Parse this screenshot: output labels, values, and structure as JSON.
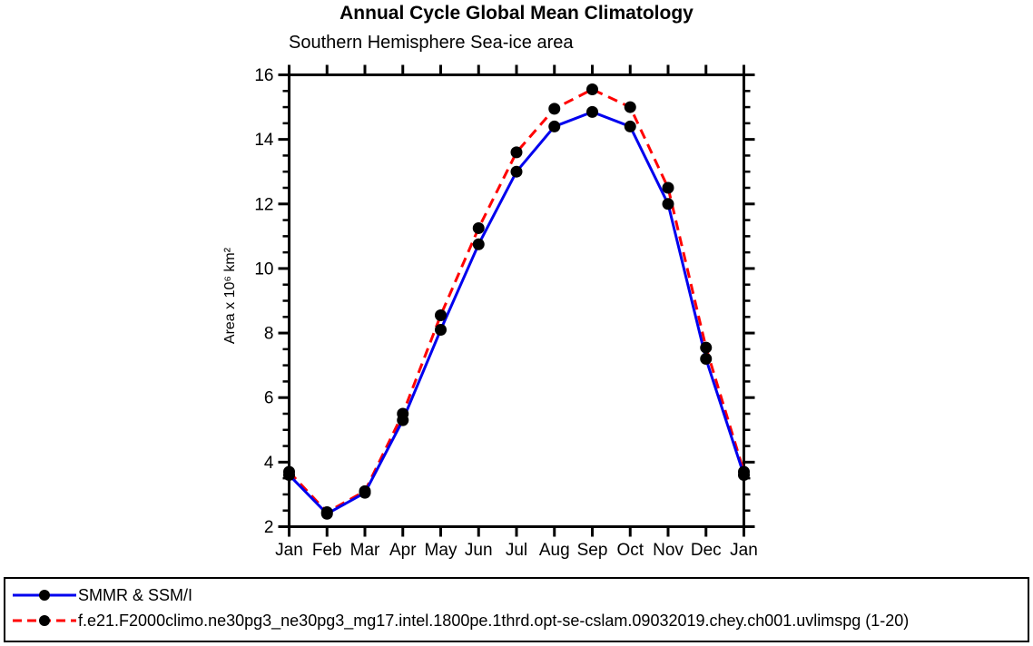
{
  "page": {
    "background": "#ffffff"
  },
  "chart_data": {
    "type": "line",
    "title": "Annual Cycle Global Mean Climatology",
    "subtitle": "Southern Hemisphere Sea-ice area",
    "ylabel": "Area x 10⁶ km²",
    "xlabel": "",
    "categories": [
      "Jan",
      "Feb",
      "Mar",
      "Apr",
      "May",
      "Jun",
      "Jul",
      "Aug",
      "Sep",
      "Oct",
      "Nov",
      "Dec",
      "Jan"
    ],
    "ylim": [
      2,
      16
    ],
    "ytick_major_interval": 2,
    "ytick_minor_interval": 0.5,
    "grid": false,
    "axis_color": "#000000",
    "legend_position": "bottom-left-box",
    "series": [
      {
        "name": "SMMR & SSM/I",
        "line_color": "#0000ee",
        "line_style": "solid",
        "marker": "filled-circle",
        "marker_color": "#000000",
        "values": [
          3.6,
          2.4,
          3.05,
          5.3,
          8.1,
          10.75,
          13.0,
          14.4,
          14.85,
          14.4,
          12.0,
          7.2,
          3.6
        ]
      },
      {
        "name": "f.e21.F2000climo.ne30pg3_ne30pg3_mg17.intel.1800pe.1thrd.opt-se-cslam.09032019.chey.ch001.uvlimspg (1-20)",
        "line_color": "#ff0000",
        "line_style": "dashed",
        "marker": "filled-circle",
        "marker_color": "#000000",
        "values": [
          3.7,
          2.45,
          3.1,
          5.5,
          8.55,
          11.25,
          13.6,
          14.95,
          15.55,
          15.0,
          12.5,
          7.55,
          3.7
        ]
      }
    ]
  }
}
